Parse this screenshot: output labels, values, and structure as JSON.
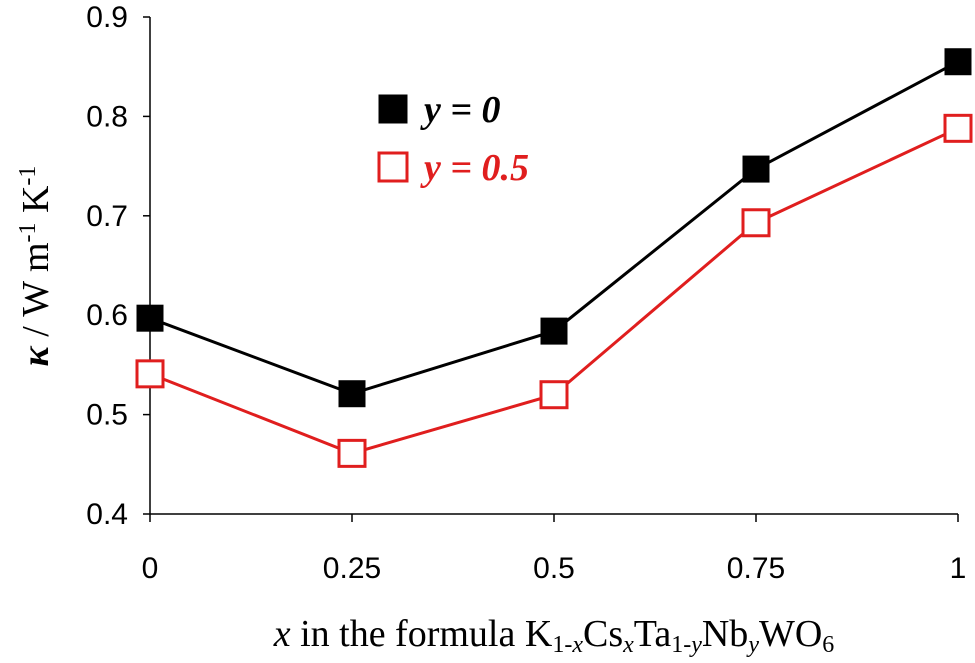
{
  "chart_data": {
    "type": "line",
    "xlabel": {
      "prefix": "x",
      "text": " in the formula ",
      "formula": [
        {
          "t": "K",
          "sub": "1-x"
        },
        {
          "t": "Cs",
          "sub": "x"
        },
        {
          "t": "Ta",
          "sub": "1-y"
        },
        {
          "t": "Nb",
          "sub": "y"
        },
        {
          "t": "WO",
          "sub": "6"
        }
      ]
    },
    "ylabel": {
      "symbol": "κ",
      "text": " / W m",
      "exp1": "-1",
      "text2": " K",
      "exp2": "-1"
    },
    "x": [
      0,
      0.25,
      0.5,
      0.75,
      1
    ],
    "x_tick_labels": [
      "0",
      "0.25",
      "0.5",
      "0.75",
      "1"
    ],
    "ylim": [
      0.4,
      0.9
    ],
    "y_ticks": [
      0.4,
      0.5,
      0.6,
      0.7,
      0.8,
      0.9
    ],
    "y_tick_labels": [
      "0.4",
      "0.5",
      "0.6",
      "0.7",
      "0.8",
      "0.9"
    ],
    "grid": false,
    "legend_position": "top-left",
    "series": [
      {
        "name": "y = 0",
        "values": [
          0.597,
          0.521,
          0.584,
          0.747,
          0.855
        ],
        "color": "#000000",
        "marker": "filled-square"
      },
      {
        "name": "y = 0.5",
        "values": [
          0.541,
          0.461,
          0.52,
          0.693,
          0.788
        ],
        "color": "#e01e1e",
        "marker": "open-square"
      }
    ]
  }
}
